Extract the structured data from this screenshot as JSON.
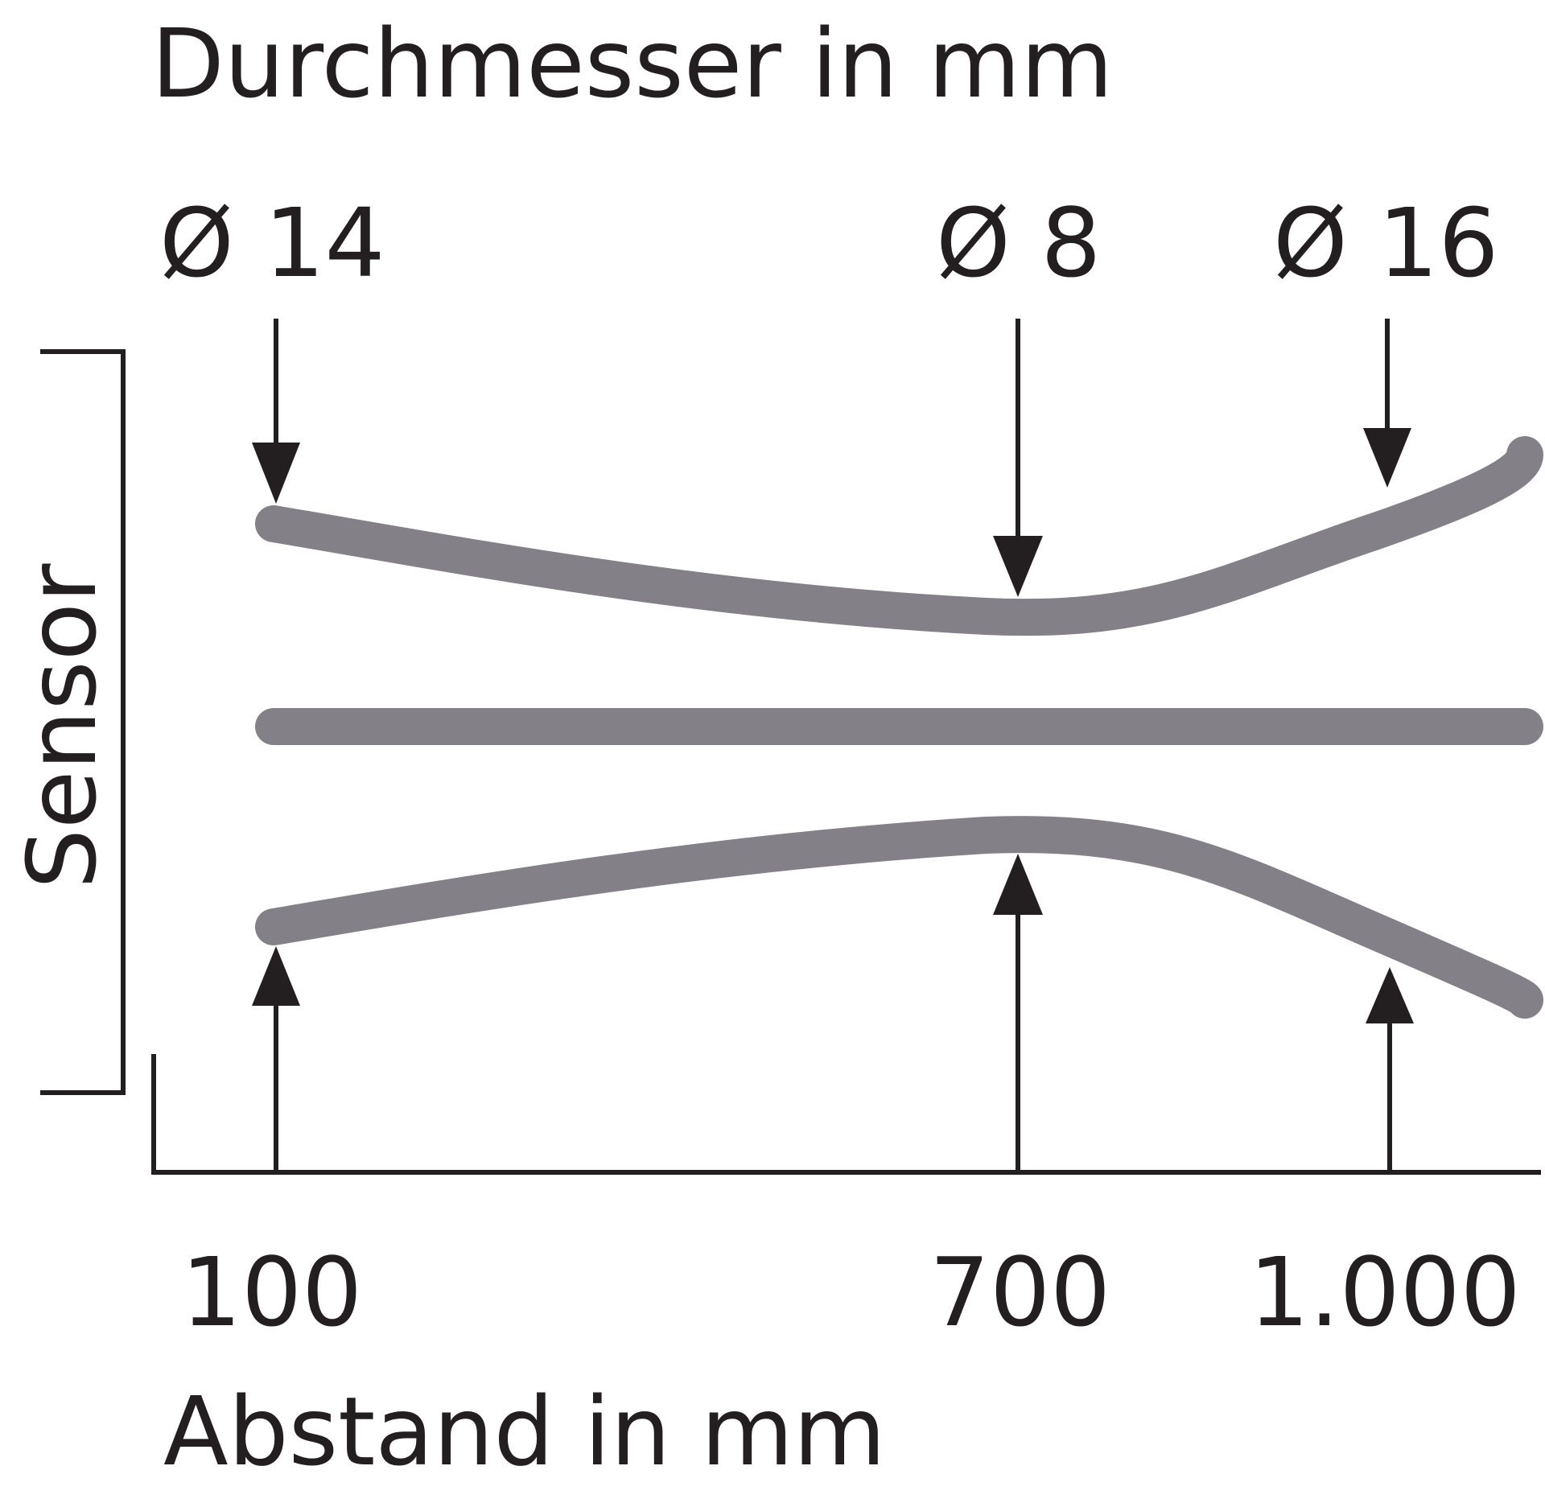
{
  "title": "Durchmesser in mm",
  "sensor_label": "Sensor",
  "x_axis_label": "Abstand in mm",
  "diameters": [
    {
      "label": "Ø 14",
      "distance_label": "100"
    },
    {
      "label": "Ø 8",
      "distance_label": "700"
    },
    {
      "label": "Ø 16",
      "distance_label": "1.000"
    }
  ],
  "colors": {
    "beam": "#838187",
    "ink": "#231f20",
    "background": "#ffffff"
  }
}
